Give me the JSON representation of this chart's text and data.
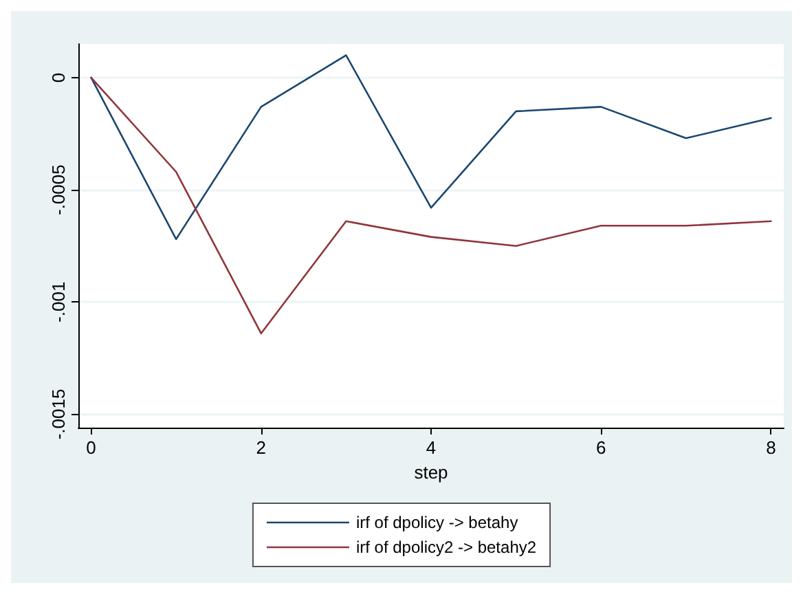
{
  "chart_data": {
    "type": "line",
    "xlabel": "step",
    "x": [
      0,
      1,
      2,
      3,
      4,
      5,
      6,
      7,
      8
    ],
    "series": [
      {
        "name": "irf of dpolicy -> betahy",
        "color": "#1a476f",
        "values": [
          0,
          -0.00072,
          -0.00013,
          0.0001,
          -0.00058,
          -0.00015,
          -0.00013,
          -0.00027,
          -0.00018
        ]
      },
      {
        "name": "irf of dpolicy2 -> betahy2",
        "color": "#90353b",
        "values": [
          0,
          -0.00042,
          -0.00114,
          -0.00064,
          -0.00071,
          -0.00075,
          -0.00066,
          -0.00066,
          -0.00064
        ]
      }
    ],
    "xlim": [
      -0.15,
      8.15
    ],
    "xticks": [
      0,
      2,
      4,
      6,
      8
    ],
    "ylim": [
      -0.00156,
      0.00015
    ],
    "yticks": [
      {
        "value": -0.0015,
        "label": "-.0015"
      },
      {
        "value": -0.001,
        "label": "-.001"
      },
      {
        "value": -0.0005,
        "label": "-.0005"
      },
      0
    ],
    "grid": "y",
    "legend": "bottom",
    "marker": "none",
    "line_style": "solid"
  }
}
